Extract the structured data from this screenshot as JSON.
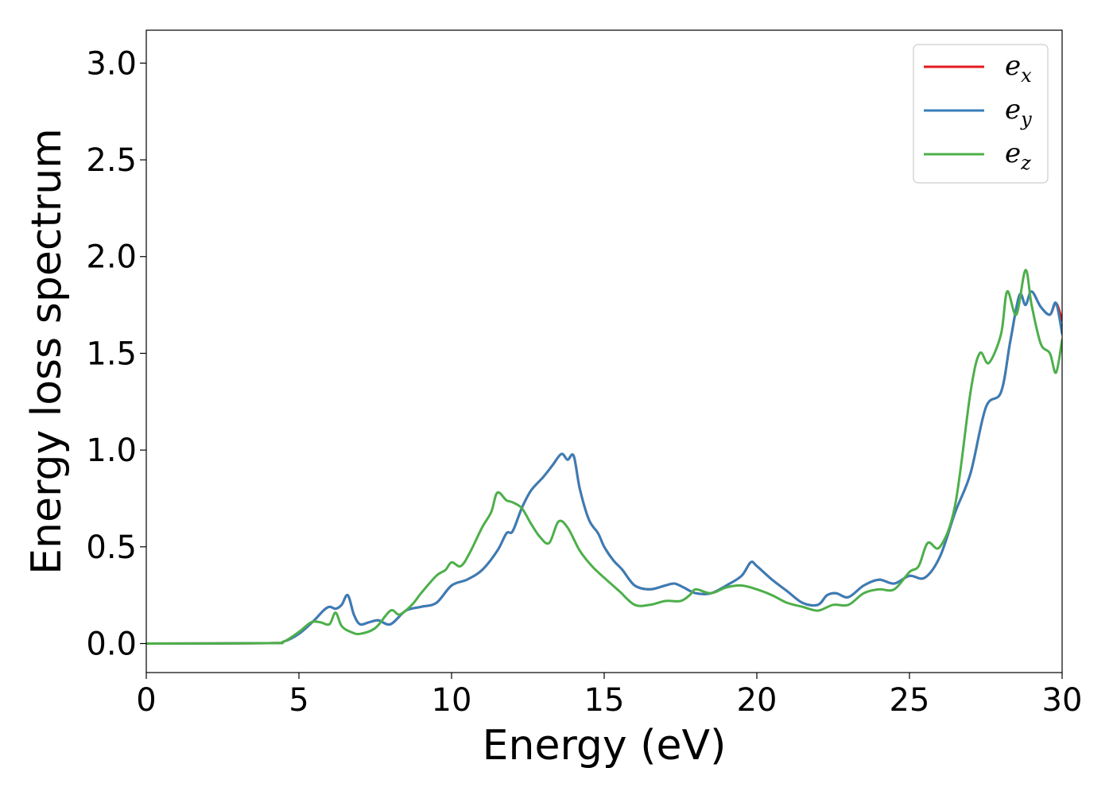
{
  "chart_data": {
    "type": "line",
    "xlabel": "Energy (eV)",
    "ylabel": "Energy loss spectrum",
    "xlim": [
      0,
      30
    ],
    "ylim": [
      -0.15,
      3.17
    ],
    "xticks": [
      0,
      5,
      10,
      15,
      20,
      25,
      30
    ],
    "xtick_labels": [
      "0",
      "5",
      "10",
      "15",
      "20",
      "25",
      "30"
    ],
    "yticks": [
      0.0,
      0.5,
      1.0,
      1.5,
      2.0,
      2.5,
      3.0
    ],
    "ytick_labels": [
      "0.0",
      "0.5",
      "1.0",
      "1.5",
      "2.0",
      "2.5",
      "3.0"
    ],
    "grid": false,
    "legend_position": "top-right",
    "series": [
      {
        "name": "e_x",
        "legend_base": "e",
        "legend_sub": "x",
        "color": "#e41a1c",
        "x": [
          0,
          4,
          4.5,
          5,
          5.5,
          5.8,
          6,
          6.2,
          6.4,
          6.6,
          6.8,
          7,
          7.3,
          7.6,
          8,
          8.5,
          9,
          9.5,
          10,
          10.5,
          11,
          11.5,
          11.8,
          12,
          12.3,
          12.6,
          13,
          13.3,
          13.6,
          13.8,
          14,
          14.2,
          14.5,
          14.8,
          15,
          15.3,
          15.6,
          16,
          16.5,
          17,
          17.3,
          17.6,
          18,
          18.5,
          19,
          19.5,
          19.8,
          20,
          20.5,
          21,
          21.5,
          22,
          22.3,
          22.6,
          23,
          23.5,
          24,
          24.5,
          25,
          25.5,
          26,
          26.5,
          27,
          27.5,
          28,
          28.3,
          28.6,
          28.8,
          29,
          29.3,
          29.6,
          29.8,
          30
        ],
        "y": [
          0,
          0.002,
          0.01,
          0.05,
          0.12,
          0.17,
          0.19,
          0.18,
          0.2,
          0.25,
          0.15,
          0.1,
          0.11,
          0.12,
          0.1,
          0.17,
          0.19,
          0.21,
          0.3,
          0.33,
          0.38,
          0.48,
          0.57,
          0.58,
          0.7,
          0.79,
          0.86,
          0.92,
          0.98,
          0.95,
          0.97,
          0.8,
          0.64,
          0.57,
          0.5,
          0.43,
          0.38,
          0.3,
          0.28,
          0.3,
          0.31,
          0.29,
          0.26,
          0.26,
          0.3,
          0.35,
          0.42,
          0.4,
          0.33,
          0.27,
          0.21,
          0.2,
          0.25,
          0.26,
          0.24,
          0.3,
          0.33,
          0.31,
          0.35,
          0.34,
          0.45,
          0.68,
          0.88,
          1.22,
          1.3,
          1.56,
          1.8,
          1.75,
          1.82,
          1.74,
          1.7,
          1.76,
          1.67
        ],
        "note_hidden_under_e_y": true
      },
      {
        "name": "e_y",
        "legend_base": "e",
        "legend_sub": "y",
        "color": "#377eb8",
        "x": [
          0,
          4,
          4.5,
          5,
          5.5,
          5.8,
          6,
          6.2,
          6.4,
          6.6,
          6.8,
          7,
          7.3,
          7.6,
          8,
          8.5,
          9,
          9.5,
          10,
          10.5,
          11,
          11.5,
          11.8,
          12,
          12.3,
          12.6,
          13,
          13.3,
          13.6,
          13.8,
          14,
          14.2,
          14.5,
          14.8,
          15,
          15.3,
          15.6,
          16,
          16.5,
          17,
          17.3,
          17.6,
          18,
          18.5,
          19,
          19.5,
          19.8,
          20,
          20.5,
          21,
          21.5,
          22,
          22.3,
          22.6,
          23,
          23.5,
          24,
          24.5,
          25,
          25.5,
          26,
          26.5,
          27,
          27.5,
          28,
          28.3,
          28.6,
          28.8,
          29,
          29.3,
          29.6,
          29.8,
          30
        ],
        "y": [
          0,
          0.002,
          0.01,
          0.05,
          0.12,
          0.17,
          0.19,
          0.18,
          0.2,
          0.25,
          0.15,
          0.1,
          0.11,
          0.12,
          0.1,
          0.17,
          0.19,
          0.21,
          0.3,
          0.33,
          0.38,
          0.48,
          0.57,
          0.58,
          0.7,
          0.79,
          0.86,
          0.92,
          0.98,
          0.95,
          0.97,
          0.8,
          0.64,
          0.57,
          0.5,
          0.43,
          0.38,
          0.3,
          0.28,
          0.3,
          0.31,
          0.29,
          0.26,
          0.26,
          0.3,
          0.35,
          0.42,
          0.4,
          0.33,
          0.27,
          0.21,
          0.2,
          0.25,
          0.26,
          0.24,
          0.3,
          0.33,
          0.31,
          0.35,
          0.34,
          0.45,
          0.68,
          0.88,
          1.22,
          1.3,
          1.56,
          1.8,
          1.75,
          1.82,
          1.74,
          1.7,
          1.76,
          1.6
        ]
      },
      {
        "name": "e_z",
        "legend_base": "e",
        "legend_sub": "z",
        "color": "#4daf4a",
        "x": [
          0,
          4,
          4.5,
          5,
          5.4,
          5.7,
          6,
          6.2,
          6.4,
          6.7,
          7,
          7.5,
          8,
          8.3,
          8.7,
          9,
          9.5,
          9.8,
          10,
          10.3,
          10.6,
          11,
          11.3,
          11.5,
          11.8,
          12,
          12.3,
          12.6,
          12.9,
          13.2,
          13.5,
          13.8,
          14.2,
          14.6,
          15,
          15.5,
          16,
          16.5,
          17,
          17.5,
          17.8,
          18,
          18.5,
          19,
          19.5,
          20,
          20.5,
          21,
          21.5,
          22,
          22.5,
          23,
          23.5,
          24,
          24.5,
          25,
          25.3,
          25.6,
          26,
          26.5,
          27,
          27.3,
          27.6,
          28,
          28.2,
          28.5,
          28.8,
          29,
          29.3,
          29.6,
          29.8,
          30
        ],
        "y": [
          0,
          0.002,
          0.01,
          0.06,
          0.11,
          0.11,
          0.1,
          0.16,
          0.09,
          0.06,
          0.05,
          0.08,
          0.17,
          0.15,
          0.2,
          0.26,
          0.35,
          0.38,
          0.42,
          0.4,
          0.47,
          0.6,
          0.68,
          0.78,
          0.74,
          0.73,
          0.7,
          0.62,
          0.55,
          0.52,
          0.63,
          0.6,
          0.48,
          0.4,
          0.34,
          0.27,
          0.2,
          0.2,
          0.22,
          0.22,
          0.25,
          0.28,
          0.26,
          0.29,
          0.3,
          0.28,
          0.25,
          0.21,
          0.19,
          0.17,
          0.2,
          0.2,
          0.26,
          0.28,
          0.28,
          0.37,
          0.4,
          0.52,
          0.5,
          0.72,
          1.3,
          1.5,
          1.45,
          1.6,
          1.82,
          1.7,
          1.93,
          1.75,
          1.55,
          1.5,
          1.4,
          1.57
        ]
      }
    ]
  }
}
